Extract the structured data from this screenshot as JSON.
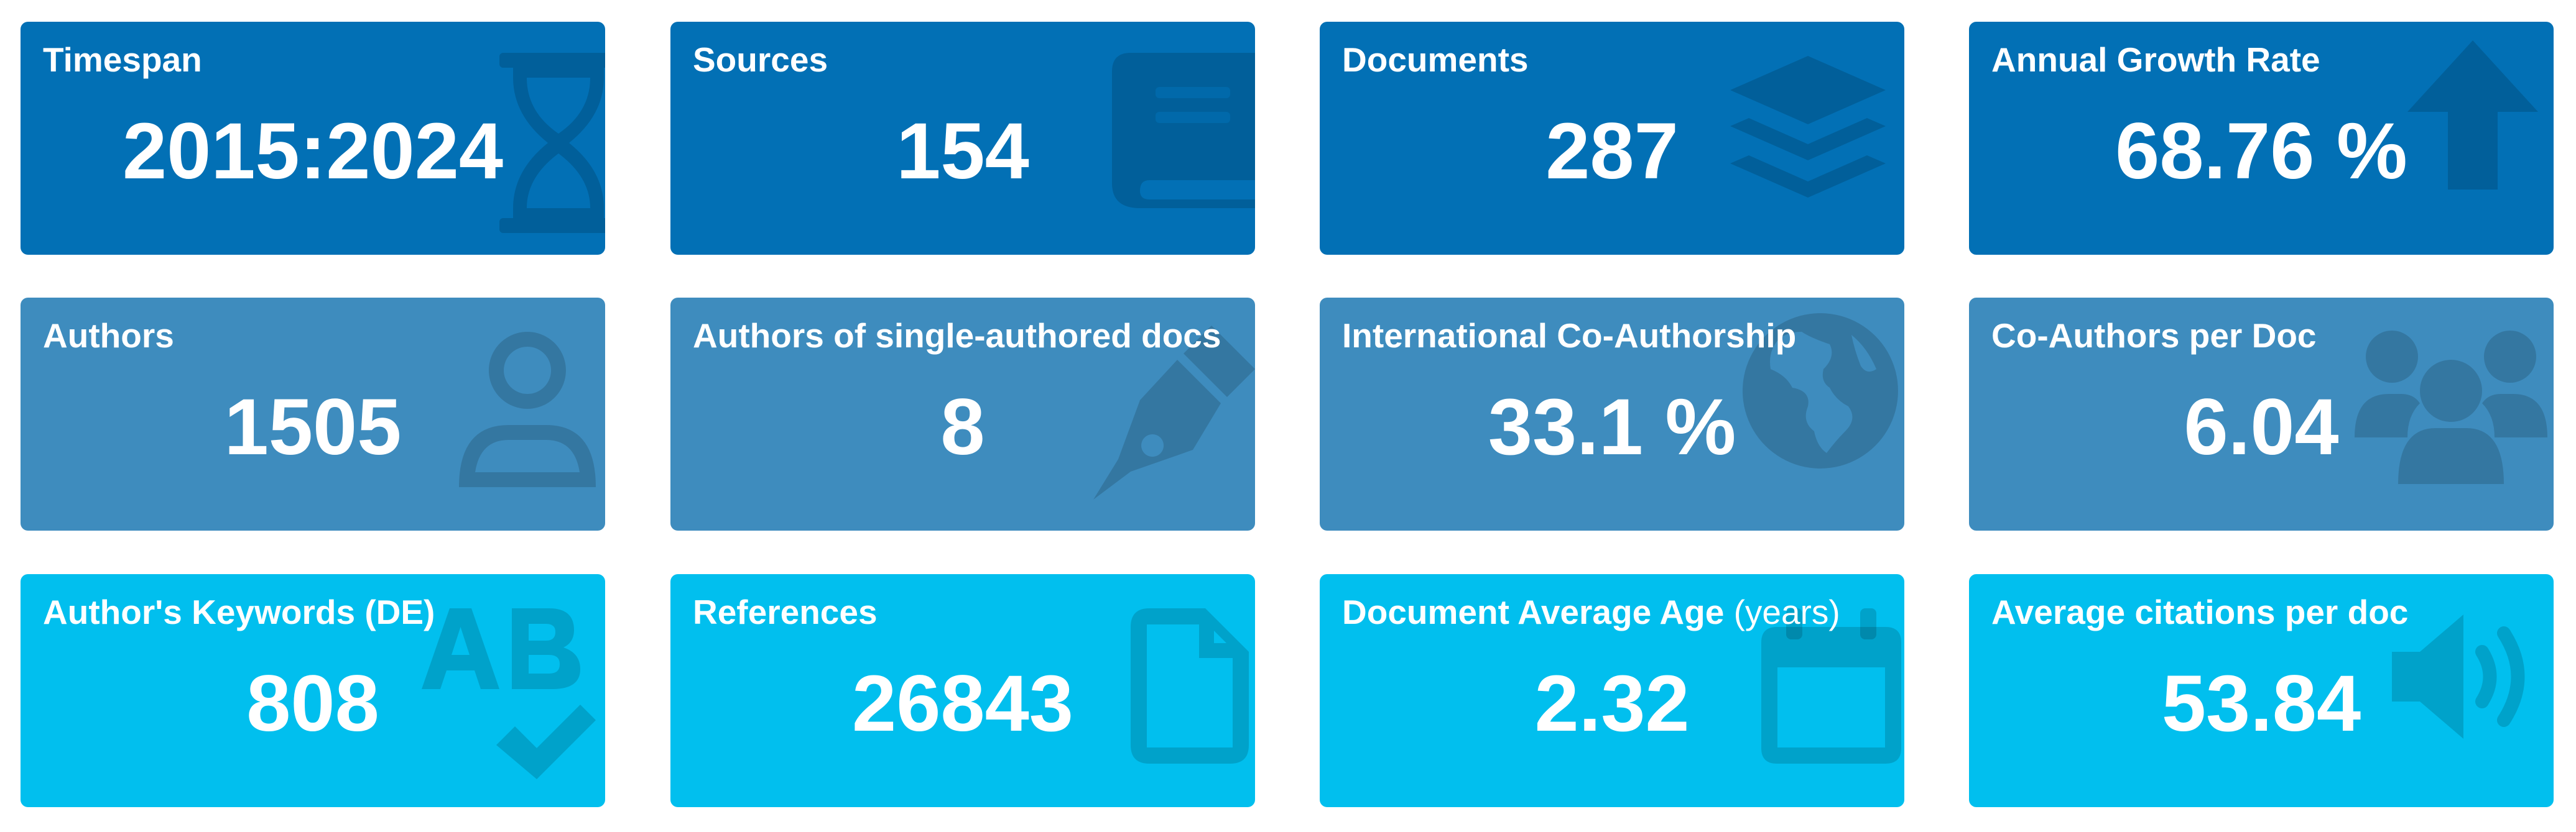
{
  "colors": {
    "row1": "#0270B5",
    "row2": "#3E8CBE",
    "row3": "#01BFEE",
    "text": "#FFFFFF"
  },
  "cards": [
    {
      "title": "Timespan",
      "value": "2015:2024",
      "icon": "hourglass-icon"
    },
    {
      "title": "Sources",
      "value": "154",
      "icon": "book-icon"
    },
    {
      "title": "Documents",
      "value": "287",
      "icon": "layers-icon"
    },
    {
      "title": "Annual Growth Rate",
      "value": "68.76 %",
      "icon": "arrow-up-icon"
    },
    {
      "title": "Authors",
      "value": "1505",
      "icon": "user-icon"
    },
    {
      "title": "Authors of single-authored docs",
      "value": "8",
      "icon": "pen-nib-icon"
    },
    {
      "title": "International Co-Authorship",
      "value": "33.1 %",
      "icon": "globe-icon"
    },
    {
      "title": "Co-Authors per Doc",
      "value": "6.04",
      "icon": "users-icon"
    },
    {
      "title": "Author's Keywords (DE)",
      "value": "808",
      "icon": "spell-check-icon"
    },
    {
      "title": "References",
      "value": "26843",
      "icon": "file-icon"
    },
    {
      "title": "Document Average Age",
      "subtitle": "(years)",
      "value": "2.32",
      "icon": "calendar-icon"
    },
    {
      "title": "Average citations per doc",
      "value": "53.84",
      "icon": "volume-icon"
    }
  ]
}
